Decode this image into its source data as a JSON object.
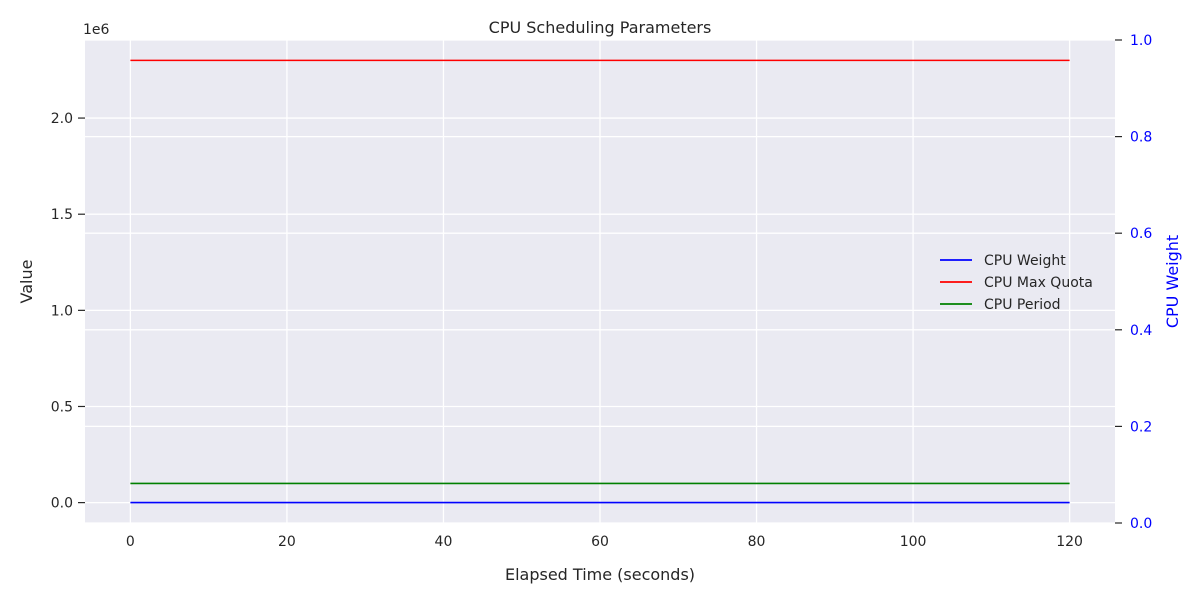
{
  "chart_data": {
    "type": "line",
    "title": "CPU Scheduling Parameters",
    "xlabel": "Elapsed Time (seconds)",
    "ylabel": "Value",
    "y2label": "CPU Weight",
    "y_offset_text": "1e6",
    "x": [
      0,
      120
    ],
    "xlim": [
      -5.8,
      125.8
    ],
    "xticks": [
      0,
      20,
      40,
      60,
      80,
      100,
      120
    ],
    "xtick_labels": [
      "0",
      "20",
      "40",
      "60",
      "80",
      "100",
      "120"
    ],
    "ylim": [
      -106000,
      2406000
    ],
    "yticks": [
      0,
      500000,
      1000000,
      1500000,
      2000000
    ],
    "ytick_labels": [
      "0.0",
      "0.5",
      "1.0",
      "1.5",
      "2.0"
    ],
    "y2lim": [
      0,
      1
    ],
    "y2ticks": [
      0,
      0.2,
      0.4,
      0.6,
      0.8,
      1.0
    ],
    "y2tick_labels": [
      "0.0",
      "0.2",
      "0.4",
      "0.6",
      "0.8",
      "1.0"
    ],
    "y2_color": "#0000ff",
    "grid": true,
    "background": "#eaeaf2",
    "legend_position": "center-right",
    "series": [
      {
        "name": "CPU Weight",
        "color": "#0000ff",
        "axis": "left",
        "values": [
          100,
          100
        ]
      },
      {
        "name": "CPU Max Quota",
        "color": "#ff0000",
        "axis": "left",
        "values": [
          2300000,
          2300000
        ]
      },
      {
        "name": "CPU Period",
        "color": "#008000",
        "axis": "left",
        "values": [
          100000,
          100000
        ]
      }
    ]
  }
}
